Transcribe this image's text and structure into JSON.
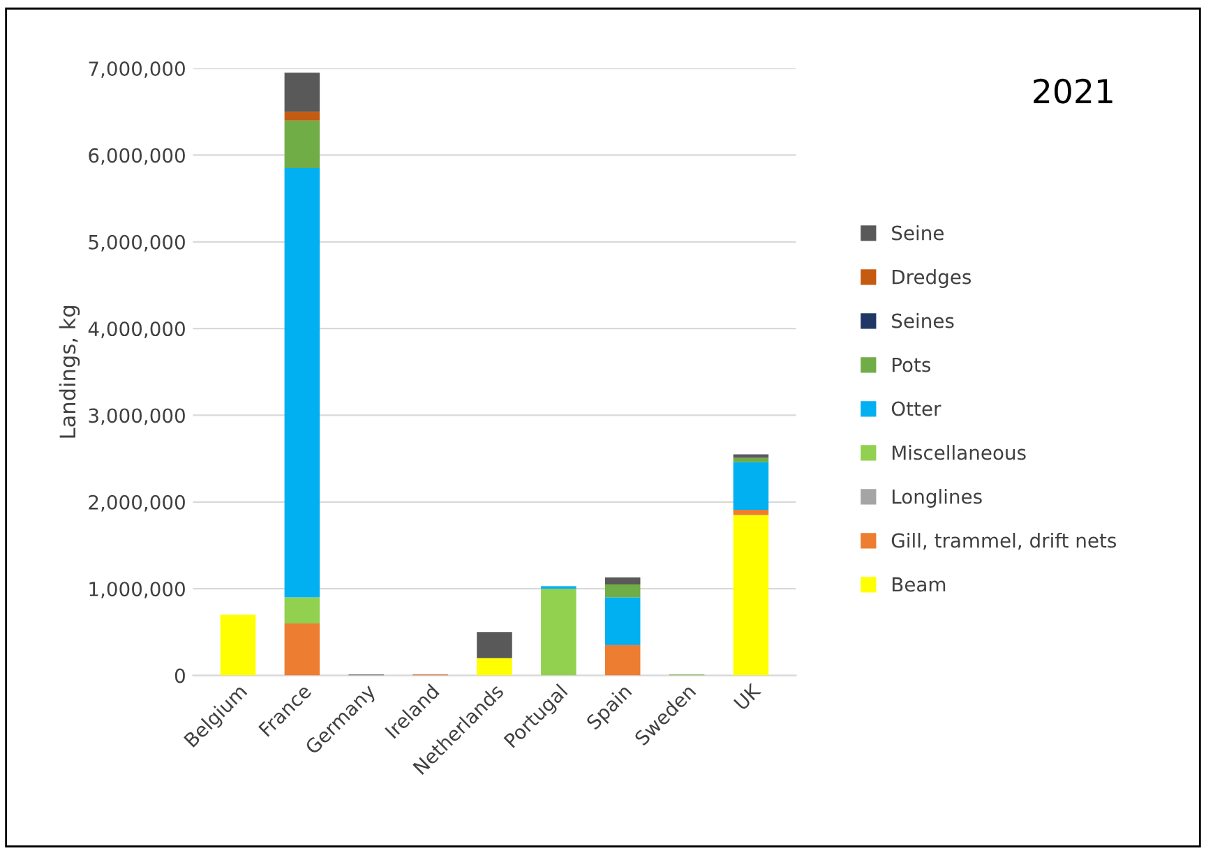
{
  "chart_data": {
    "type": "bar",
    "stacked": true,
    "title": "2021",
    "ylabel": "Landings, kg",
    "categories": [
      "Belgium",
      "France",
      "Germany",
      "Ireland",
      "Netherlands",
      "Portugal",
      "Spain",
      "Sweden",
      "UK"
    ],
    "series": [
      {
        "name": "Beam",
        "color": "#ffff00",
        "values": [
          700000,
          0,
          0,
          0,
          200000,
          0,
          0,
          0,
          1850000
        ]
      },
      {
        "name": "Gill, trammel, drift nets",
        "color": "#ed7d31",
        "values": [
          0,
          600000,
          0,
          0,
          0,
          0,
          350000,
          0,
          60000
        ]
      },
      {
        "name": "Longlines",
        "color": "#a5a5a5",
        "values": [
          0,
          0,
          0,
          0,
          0,
          0,
          0,
          0,
          0
        ]
      },
      {
        "name": "Miscellaneous",
        "color": "#92d050",
        "values": [
          0,
          300000,
          0,
          0,
          0,
          1000000,
          0,
          0,
          0
        ]
      },
      {
        "name": "Otter",
        "color": "#00b0f0",
        "values": [
          0,
          4950000,
          0,
          0,
          0,
          30000,
          550000,
          0,
          550000
        ]
      },
      {
        "name": "Pots",
        "color": "#70ad47",
        "values": [
          0,
          550000,
          0,
          0,
          0,
          0,
          150000,
          10000,
          50000
        ]
      },
      {
        "name": "Seines",
        "color": "#203864",
        "values": [
          0,
          0,
          0,
          0,
          0,
          0,
          0,
          0,
          0
        ]
      },
      {
        "name": "Dredges",
        "color": "#c55a11",
        "values": [
          0,
          100000,
          0,
          10000,
          0,
          0,
          0,
          0,
          0
        ]
      },
      {
        "name": "Seine",
        "color": "#595959",
        "values": [
          0,
          450000,
          10000,
          0,
          300000,
          0,
          80000,
          0,
          40000
        ]
      }
    ],
    "ylim": [
      0,
      7000000
    ],
    "yticks": [
      {
        "value": 0,
        "label": "0"
      },
      {
        "value": 1000000,
        "label": "1,000,000"
      },
      {
        "value": 2000000,
        "label": "2,000,000"
      },
      {
        "value": 3000000,
        "label": "3,000,000"
      },
      {
        "value": 4000000,
        "label": "4,000,000"
      },
      {
        "value": 5000000,
        "label": "5,000,000"
      },
      {
        "value": 6000000,
        "label": "6,000,000"
      },
      {
        "value": 7000000,
        "label": "7,000,000"
      }
    ],
    "grid": "y",
    "legend": "right"
  }
}
